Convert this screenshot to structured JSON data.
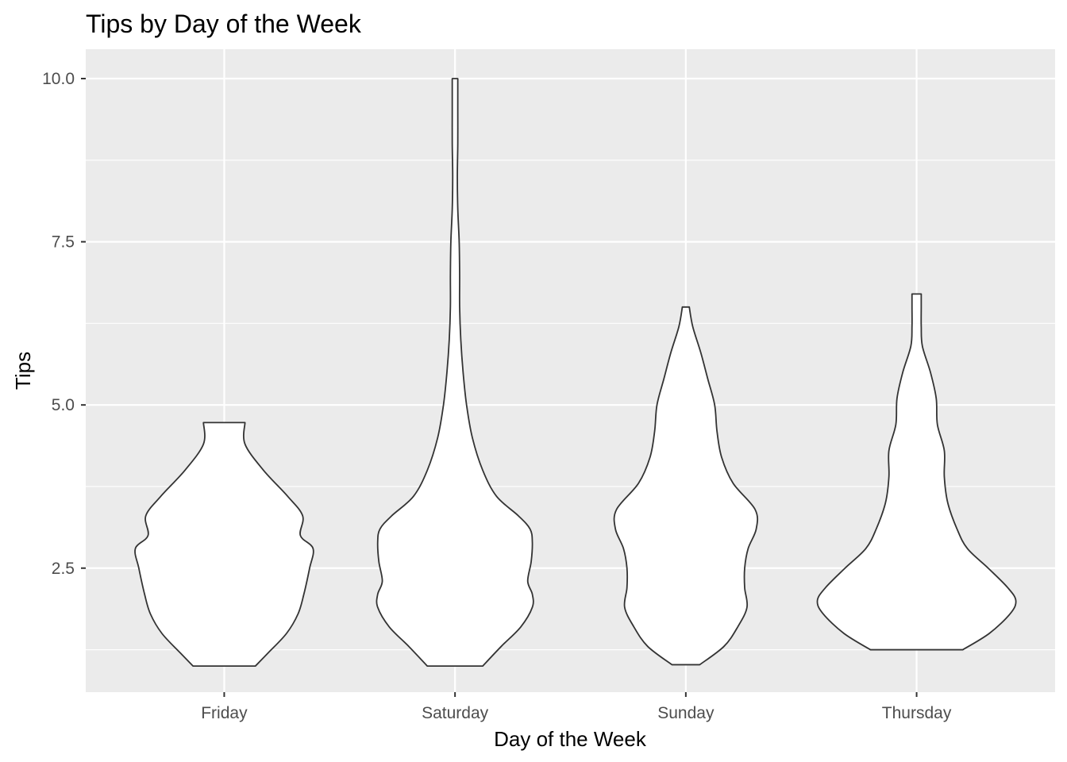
{
  "chart_data": {
    "type": "violin",
    "title": "Tips by Day of the Week",
    "xlabel": "Day of the Week",
    "ylabel": "Tips",
    "categories": [
      "Friday",
      "Saturday",
      "Sunday",
      "Thursday"
    ],
    "ylim": [
      0.6,
      10.45
    ],
    "yticks": [
      2.5,
      5.0,
      7.5,
      10.0
    ],
    "ytick_labels": [
      "2.5",
      "5.0",
      "7.5",
      "10.0"
    ],
    "grid": true,
    "colors": {
      "panel_background": "#ebebeb",
      "grid": "#ffffff",
      "violin_fill": "#ffffff",
      "violin_outline": "#333333",
      "tick_label": "#4d4d4d"
    },
    "violins": [
      {
        "category": "Friday",
        "range": [
          1.0,
          4.73
        ],
        "profile": [
          [
            1.0,
            0.135
          ],
          [
            1.2,
            0.19
          ],
          [
            1.5,
            0.27
          ],
          [
            1.8,
            0.32
          ],
          [
            2.1,
            0.345
          ],
          [
            2.5,
            0.37
          ],
          [
            2.8,
            0.385
          ],
          [
            3.0,
            0.33
          ],
          [
            3.3,
            0.34
          ],
          [
            3.6,
            0.275
          ],
          [
            4.0,
            0.17
          ],
          [
            4.4,
            0.09
          ],
          [
            4.73,
            0.09
          ]
        ]
      },
      {
        "category": "Saturday",
        "range": [
          1.0,
          10.0
        ],
        "profile": [
          [
            1.0,
            0.12
          ],
          [
            1.3,
            0.2
          ],
          [
            1.6,
            0.285
          ],
          [
            1.9,
            0.335
          ],
          [
            2.1,
            0.335
          ],
          [
            2.3,
            0.315
          ],
          [
            2.6,
            0.33
          ],
          [
            2.9,
            0.335
          ],
          [
            3.1,
            0.325
          ],
          [
            3.3,
            0.275
          ],
          [
            3.6,
            0.18
          ],
          [
            4.0,
            0.12
          ],
          [
            4.5,
            0.075
          ],
          [
            5.0,
            0.05
          ],
          [
            5.5,
            0.035
          ],
          [
            6.0,
            0.025
          ],
          [
            6.5,
            0.02
          ],
          [
            7.0,
            0.02
          ],
          [
            7.5,
            0.018
          ],
          [
            8.0,
            0.012
          ],
          [
            8.5,
            0.01
          ],
          [
            9.0,
            0.012
          ],
          [
            9.5,
            0.012
          ],
          [
            10.0,
            0.012
          ]
        ]
      },
      {
        "category": "Sunday",
        "range": [
          1.02,
          6.5
        ],
        "profile": [
          [
            1.02,
            0.06
          ],
          [
            1.3,
            0.165
          ],
          [
            1.6,
            0.225
          ],
          [
            1.9,
            0.265
          ],
          [
            2.2,
            0.255
          ],
          [
            2.5,
            0.255
          ],
          [
            2.8,
            0.27
          ],
          [
            3.1,
            0.305
          ],
          [
            3.4,
            0.3
          ],
          [
            3.8,
            0.205
          ],
          [
            4.2,
            0.155
          ],
          [
            4.6,
            0.135
          ],
          [
            5.0,
            0.125
          ],
          [
            5.4,
            0.095
          ],
          [
            5.8,
            0.065
          ],
          [
            6.2,
            0.03
          ],
          [
            6.5,
            0.015
          ]
        ]
      },
      {
        "category": "Thursday",
        "range": [
          1.25,
          6.7
        ],
        "profile": [
          [
            1.25,
            0.2
          ],
          [
            1.5,
            0.315
          ],
          [
            1.8,
            0.405
          ],
          [
            2.0,
            0.43
          ],
          [
            2.2,
            0.395
          ],
          [
            2.5,
            0.31
          ],
          [
            2.8,
            0.22
          ],
          [
            3.1,
            0.175
          ],
          [
            3.5,
            0.135
          ],
          [
            3.9,
            0.12
          ],
          [
            4.3,
            0.12
          ],
          [
            4.7,
            0.09
          ],
          [
            5.1,
            0.085
          ],
          [
            5.5,
            0.06
          ],
          [
            5.9,
            0.025
          ],
          [
            6.2,
            0.02
          ],
          [
            6.5,
            0.02
          ],
          [
            6.7,
            0.02
          ]
        ]
      }
    ]
  }
}
